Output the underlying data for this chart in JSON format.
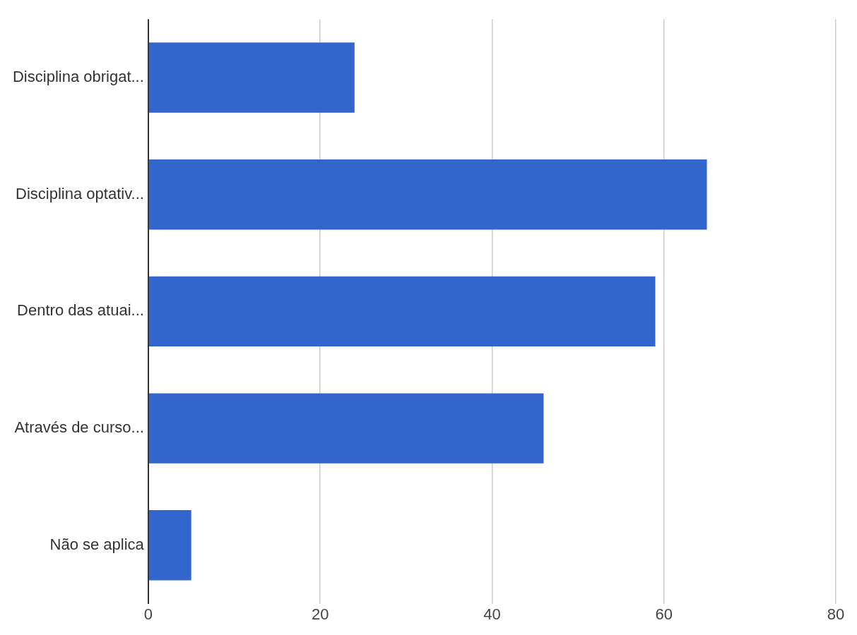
{
  "chart_data": {
    "type": "bar",
    "orientation": "horizontal",
    "categories": [
      "Disciplina obrigat...",
      "Disciplina optativ...",
      "Dentro das atuai...",
      "Através de curso...",
      "Não se aplica"
    ],
    "values": [
      24,
      65,
      59,
      46,
      5
    ],
    "color": "#3366cc",
    "xlim": [
      0,
      80
    ],
    "xticks": [
      0,
      20,
      40,
      60,
      80
    ],
    "grid": "x"
  }
}
